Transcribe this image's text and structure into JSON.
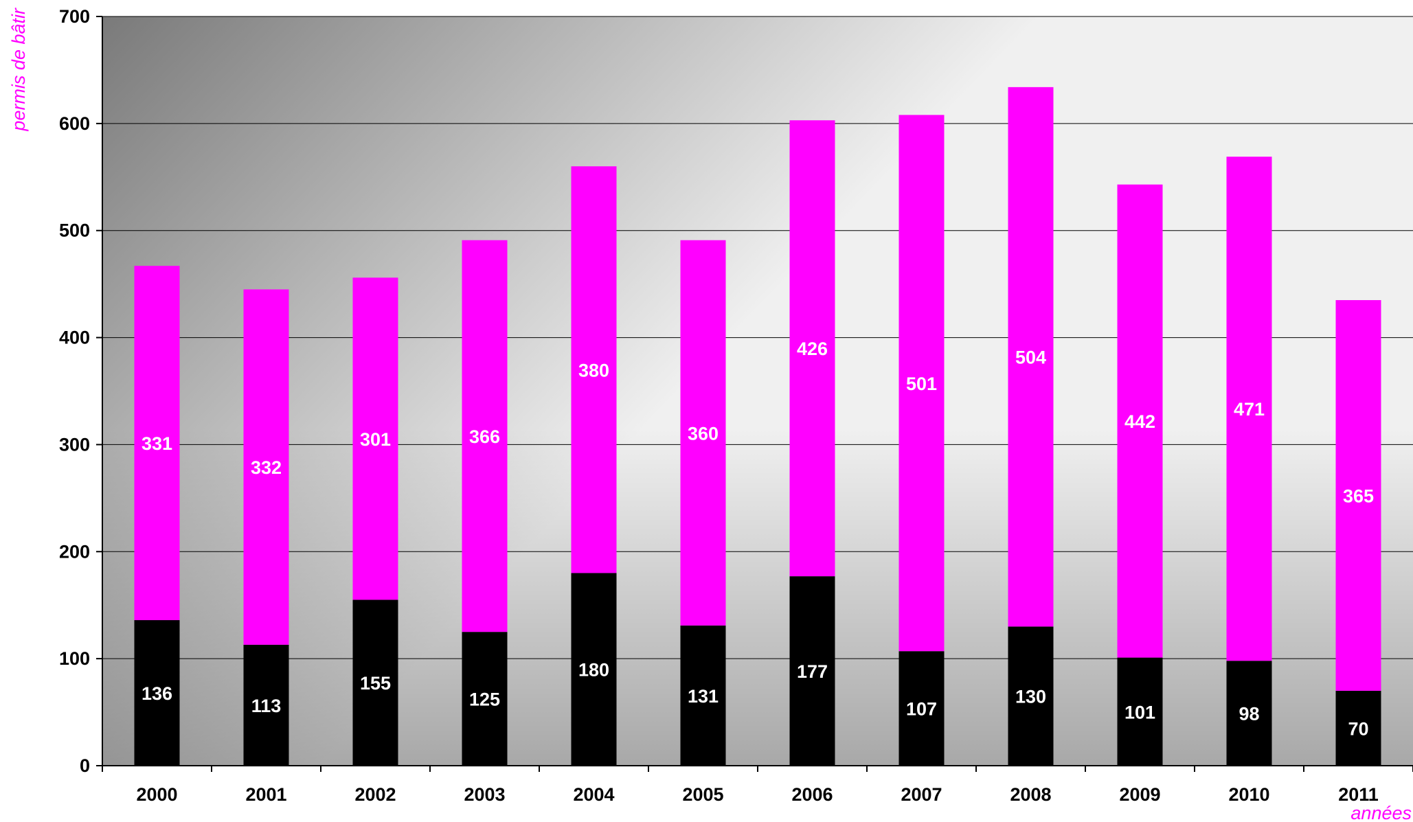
{
  "chart_data": {
    "type": "bar",
    "stacked": true,
    "categories": [
      "2000",
      "2001",
      "2002",
      "2003",
      "2004",
      "2005",
      "2006",
      "2007",
      "2008",
      "2009",
      "2010",
      "2011"
    ],
    "series": [
      {
        "color": "#000000",
        "values": [
          136,
          113,
          155,
          125,
          180,
          131,
          177,
          107,
          130,
          101,
          98,
          70
        ]
      },
      {
        "color": "#ff00ff",
        "values": [
          331,
          332,
          301,
          366,
          380,
          360,
          426,
          501,
          504,
          442,
          471,
          365
        ]
      }
    ],
    "xlabel": "années",
    "ylabel": "permis de bâtir",
    "ylim": [
      0,
      700
    ],
    "yticks": [
      0,
      100,
      200,
      300,
      400,
      500,
      600,
      700
    ],
    "grid": true,
    "legend": "none",
    "data_labels": true,
    "colors": {
      "plot_background_dark": "#7a7a7a",
      "plot_background_light": "#f0f0f0",
      "axis_title": "#ff00ff",
      "gridline": "#000000",
      "data_label_text": "#ffffff"
    }
  }
}
